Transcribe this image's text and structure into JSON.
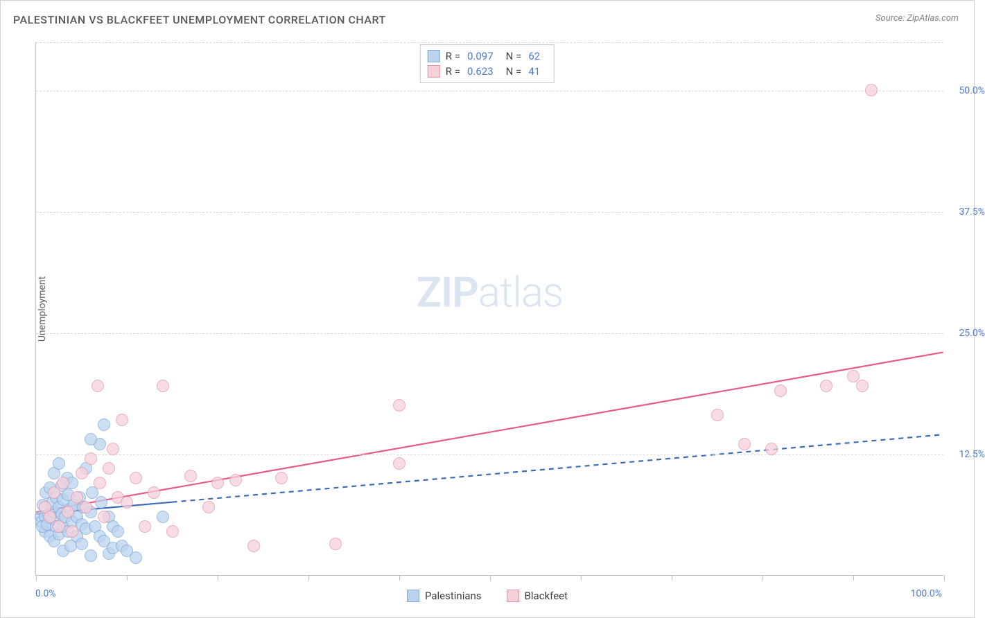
{
  "title": "PALESTINIAN VS BLACKFEET UNEMPLOYMENT CORRELATION CHART",
  "source": "Source: ZipAtlas.com",
  "ylabel": "Unemployment",
  "watermark_prefix": "ZIP",
  "watermark_suffix": "atlas",
  "chart": {
    "type": "scatter",
    "xlim": [
      0,
      100
    ],
    "ylim": [
      0,
      55
    ],
    "x_tick_positions": [
      0,
      10,
      20,
      30,
      40,
      50,
      60,
      70,
      80,
      90,
      100
    ],
    "y_gridlines": [
      12.5,
      25.0,
      37.5,
      50.0,
      55.0
    ],
    "y_tick_labels": [
      {
        "v": 12.5,
        "t": "12.5%"
      },
      {
        "v": 25.0,
        "t": "25.0%"
      },
      {
        "v": 37.5,
        "t": "37.5%"
      },
      {
        "v": 50.0,
        "t": "50.0%"
      }
    ],
    "x_left_label": "0.0%",
    "x_right_label": "100.0%",
    "background_color": "#ffffff",
    "grid_color": "#d8d8d8",
    "axis_color": "#c0c0c0",
    "label_color": "#4a7bd0",
    "marker_radius": 9,
    "marker_stroke_width": 1.2,
    "series": [
      {
        "name": "Palestinians",
        "fill": "#bcd3ee",
        "stroke": "#7fa8d8",
        "opacity": 0.75,
        "R": "0.097",
        "N": "62",
        "trend": {
          "x1": 0,
          "y1": 6.3,
          "x2": 100,
          "y2": 14.5,
          "solid_to_x": 15,
          "color": "#3b6bb8",
          "width": 2.2,
          "dash": "7,6"
        },
        "points": [
          [
            0.5,
            6.0
          ],
          [
            0.6,
            5.5
          ],
          [
            0.8,
            7.2
          ],
          [
            1.0,
            6.0
          ],
          [
            1.0,
            4.5
          ],
          [
            1.1,
            8.5
          ],
          [
            0.7,
            5.0
          ],
          [
            1.2,
            5.2
          ],
          [
            1.4,
            6.2
          ],
          [
            1.5,
            9.0
          ],
          [
            1.5,
            4.0
          ],
          [
            1.8,
            7.5
          ],
          [
            1.8,
            5.8
          ],
          [
            2.0,
            10.5
          ],
          [
            2.0,
            6.5
          ],
          [
            2.0,
            3.5
          ],
          [
            2.2,
            8.0
          ],
          [
            2.2,
            5.0
          ],
          [
            2.5,
            11.5
          ],
          [
            2.5,
            7.0
          ],
          [
            2.5,
            4.2
          ],
          [
            2.8,
            6.3
          ],
          [
            2.8,
            9.2
          ],
          [
            3.0,
            5.0
          ],
          [
            3.0,
            7.8
          ],
          [
            3.0,
            2.5
          ],
          [
            3.2,
            6.0
          ],
          [
            3.4,
            10.0
          ],
          [
            3.5,
            4.5
          ],
          [
            3.5,
            8.3
          ],
          [
            3.8,
            6.8
          ],
          [
            3.8,
            3.0
          ],
          [
            4.0,
            5.5
          ],
          [
            4.0,
            9.5
          ],
          [
            4.2,
            7.2
          ],
          [
            4.5,
            4.0
          ],
          [
            4.5,
            6.0
          ],
          [
            4.8,
            8.0
          ],
          [
            5.0,
            5.2
          ],
          [
            5.0,
            3.2
          ],
          [
            5.2,
            7.0
          ],
          [
            5.5,
            11.0
          ],
          [
            5.5,
            4.8
          ],
          [
            6.0,
            6.5
          ],
          [
            6.0,
            2.0
          ],
          [
            6.2,
            8.5
          ],
          [
            6.5,
            5.0
          ],
          [
            7.0,
            13.5
          ],
          [
            7.0,
            4.0
          ],
          [
            7.2,
            7.5
          ],
          [
            7.5,
            3.5
          ],
          [
            8.0,
            6.0
          ],
          [
            8.0,
            2.2
          ],
          [
            8.5,
            5.0
          ],
          [
            7.5,
            15.5
          ],
          [
            8.5,
            2.8
          ],
          [
            9.0,
            4.5
          ],
          [
            9.5,
            3.0
          ],
          [
            10.0,
            2.5
          ],
          [
            11.0,
            1.8
          ],
          [
            14.0,
            6.0
          ],
          [
            6.0,
            14.0
          ]
        ]
      },
      {
        "name": "Blackfeet",
        "fill": "#f6d1da",
        "stroke": "#e594aa",
        "opacity": 0.75,
        "R": "0.623",
        "N": "41",
        "trend": {
          "x1": 0,
          "y1": 6.5,
          "x2": 100,
          "y2": 23.0,
          "solid_to_x": 100,
          "color": "#e75a87",
          "width": 2.2,
          "dash": null
        },
        "points": [
          [
            1.0,
            7.0
          ],
          [
            1.5,
            6.0
          ],
          [
            2.0,
            8.5
          ],
          [
            2.5,
            5.0
          ],
          [
            3.0,
            9.5
          ],
          [
            3.5,
            6.5
          ],
          [
            4.0,
            4.5
          ],
          [
            4.5,
            8.0
          ],
          [
            5.0,
            10.5
          ],
          [
            5.5,
            7.0
          ],
          [
            6.0,
            12.0
          ],
          [
            6.8,
            19.5
          ],
          [
            7.0,
            9.5
          ],
          [
            7.5,
            6.0
          ],
          [
            8.5,
            13.0
          ],
          [
            8.0,
            11.0
          ],
          [
            9.0,
            8.0
          ],
          [
            9.5,
            16.0
          ],
          [
            10.0,
            7.5
          ],
          [
            11.0,
            10.0
          ],
          [
            12.0,
            5.0
          ],
          [
            13.0,
            8.5
          ],
          [
            14.0,
            19.5
          ],
          [
            15.0,
            4.5
          ],
          [
            17.0,
            10.2
          ],
          [
            19.0,
            7.0
          ],
          [
            20.0,
            9.5
          ],
          [
            22.0,
            9.8
          ],
          [
            24.0,
            3.0
          ],
          [
            27.0,
            10.0
          ],
          [
            33.0,
            3.2
          ],
          [
            40.0,
            17.5
          ],
          [
            75.0,
            16.5
          ],
          [
            78.0,
            13.5
          ],
          [
            81.0,
            13.0
          ],
          [
            82.0,
            19.0
          ],
          [
            87.0,
            19.5
          ],
          [
            90.0,
            20.5
          ],
          [
            91.0,
            19.5
          ],
          [
            92.0,
            50.0
          ],
          [
            40.0,
            11.5
          ]
        ]
      }
    ]
  },
  "legend": {
    "r_label": "R =",
    "n_label": "N ="
  }
}
